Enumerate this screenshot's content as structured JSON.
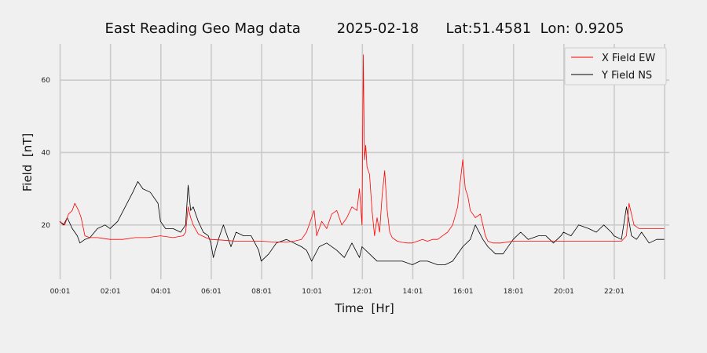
{
  "chart_data": {
    "type": "line",
    "title": "East Reading Geo Mag data        2025-02-18      Lat:51.4581  Lon: 0.9205",
    "xlabel": "Time  [Hr]",
    "ylabel": "Field  [nT]",
    "xlim": [
      0.0,
      24.2
    ],
    "ylim": [
      5,
      70
    ],
    "yticks": [
      20,
      40,
      60
    ],
    "xticks": [
      {
        "value": 0.0167,
        "label": "00:01"
      },
      {
        "value": 2.0167,
        "label": "02:01"
      },
      {
        "value": 4.0167,
        "label": "04:01"
      },
      {
        "value": 6.0167,
        "label": "06:01"
      },
      {
        "value": 8.0167,
        "label": "08:01"
      },
      {
        "value": 10.0167,
        "label": "10:01"
      },
      {
        "value": 12.0167,
        "label": "12:01"
      },
      {
        "value": 14.0167,
        "label": "14:01"
      },
      {
        "value": 16.0167,
        "label": "16:01"
      },
      {
        "value": 18.0167,
        "label": "18:01"
      },
      {
        "value": 20.0167,
        "label": "20:01"
      },
      {
        "value": 22.0167,
        "label": "22:01"
      }
    ],
    "grid": true,
    "legend_position": "top-right",
    "series": [
      {
        "name": "X Field EW",
        "color": "#ff0000",
        "x": [
          0.0,
          0.2,
          0.35,
          0.5,
          0.6,
          0.75,
          0.85,
          1.0,
          1.2,
          1.5,
          2.0,
          2.5,
          3.0,
          3.5,
          4.0,
          4.5,
          4.9,
          5.0,
          5.1,
          5.2,
          5.3,
          5.5,
          5.8,
          6.0,
          6.5,
          7.0,
          7.5,
          8.0,
          8.5,
          9.0,
          9.3,
          9.6,
          9.8,
          10.0,
          10.1,
          10.2,
          10.4,
          10.6,
          10.8,
          11.0,
          11.2,
          11.4,
          11.6,
          11.8,
          11.9,
          12.0,
          12.05,
          12.1,
          12.15,
          12.2,
          12.3,
          12.4,
          12.5,
          12.6,
          12.7,
          12.8,
          12.9,
          13.0,
          13.1,
          13.2,
          13.4,
          13.6,
          13.8,
          14.0,
          14.2,
          14.4,
          14.6,
          14.8,
          15.0,
          15.2,
          15.4,
          15.6,
          15.8,
          15.9,
          16.0,
          16.1,
          16.2,
          16.3,
          16.5,
          16.7,
          16.9,
          17.0,
          17.2,
          17.5,
          18.0,
          18.5,
          19.0,
          19.5,
          20.0,
          20.5,
          21.0,
          21.5,
          22.0,
          22.3,
          22.5,
          22.6,
          22.8,
          23.0,
          23.3,
          23.6,
          24.0
        ],
        "y": [
          21,
          20,
          23,
          24,
          26,
          24,
          22,
          17,
          16.5,
          16.5,
          16,
          16,
          16.5,
          16.5,
          17,
          16.5,
          17,
          18,
          25,
          22,
          20,
          17.5,
          16.5,
          16,
          15.8,
          15.5,
          15.5,
          15.5,
          15.3,
          15.3,
          15.5,
          16,
          18,
          22,
          24,
          17,
          21,
          19,
          23,
          24,
          20,
          22,
          25,
          24,
          30,
          20,
          67,
          38,
          42,
          36,
          34,
          24,
          17,
          22,
          18,
          28,
          35,
          24,
          18,
          16.5,
          15.5,
          15.2,
          15,
          15,
          15.5,
          16,
          15.5,
          16,
          16,
          17,
          18,
          20,
          25,
          32,
          38,
          30,
          28,
          24,
          22,
          23,
          17,
          15.5,
          15,
          15,
          15.5,
          15.5,
          15.5,
          15.5,
          15.5,
          15.5,
          15.5,
          15.5,
          15.5,
          15.5,
          17,
          26,
          20,
          19,
          19,
          19,
          19
        ]
      },
      {
        "name": "Y Field NS",
        "color": "#000000",
        "x": [
          0.0,
          0.15,
          0.3,
          0.5,
          0.7,
          0.8,
          1.0,
          1.2,
          1.5,
          1.8,
          2.0,
          2.3,
          2.6,
          2.9,
          3.1,
          3.3,
          3.6,
          3.9,
          4.0,
          4.2,
          4.5,
          4.8,
          5.0,
          5.1,
          5.2,
          5.3,
          5.5,
          5.7,
          5.9,
          6.0,
          6.1,
          6.3,
          6.5,
          6.8,
          7.0,
          7.3,
          7.6,
          7.9,
          8.0,
          8.3,
          8.6,
          9.0,
          9.3,
          9.6,
          9.8,
          10.0,
          10.3,
          10.6,
          11.0,
          11.3,
          11.6,
          11.9,
          12.0,
          12.3,
          12.6,
          13.0,
          13.3,
          13.6,
          14.0,
          14.3,
          14.6,
          15.0,
          15.3,
          15.6,
          16.0,
          16.3,
          16.5,
          16.8,
          17.0,
          17.3,
          17.6,
          18.0,
          18.3,
          18.6,
          19.0,
          19.3,
          19.6,
          19.9,
          20.0,
          20.3,
          20.6,
          21.0,
          21.3,
          21.6,
          21.9,
          22.0,
          22.3,
          22.5,
          22.7,
          22.9,
          23.1,
          23.4,
          23.7,
          24.0
        ],
        "y": [
          21,
          20,
          22,
          19,
          17,
          15,
          16,
          16.5,
          19,
          20,
          19,
          21,
          25,
          29,
          32,
          30,
          29,
          26,
          21,
          19,
          19,
          18,
          20,
          31,
          24,
          25,
          21,
          18,
          17,
          15,
          11,
          16,
          20,
          14,
          18,
          17,
          17,
          13,
          10,
          12,
          15,
          16,
          15,
          14,
          13,
          10,
          14,
          15,
          13,
          11,
          15,
          11,
          14,
          12,
          10,
          10,
          10,
          10,
          9,
          10,
          10,
          9,
          9,
          10,
          14,
          16,
          20,
          16,
          14,
          12,
          12,
          16,
          18,
          16,
          17,
          17,
          15,
          17,
          18,
          17,
          20,
          19,
          18,
          20,
          18,
          17,
          16,
          25,
          17,
          16,
          18,
          15,
          16,
          16
        ]
      }
    ]
  }
}
